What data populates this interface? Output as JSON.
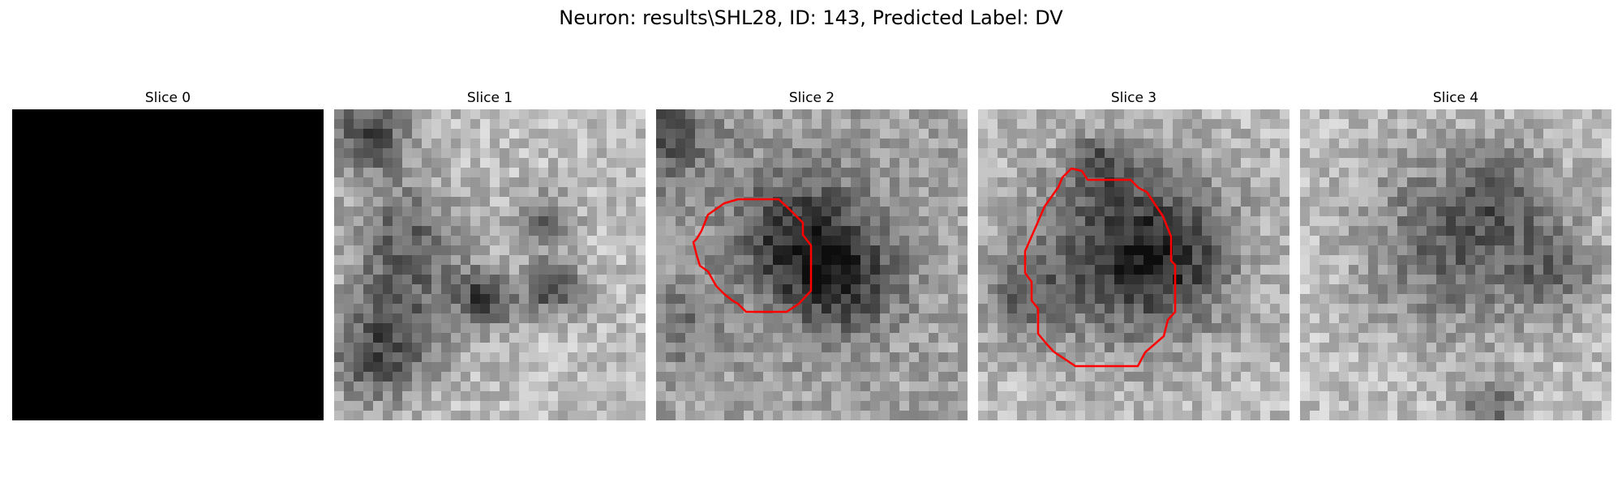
{
  "figure": {
    "title": "Neuron: results\\SHL28, ID: 143, Predicted Label: DV"
  },
  "slices": [
    {
      "title": "Slice 0",
      "kind": "blank",
      "contour": false
    },
    {
      "title": "Slice 1",
      "kind": "texture",
      "contour": false
    },
    {
      "title": "Slice 2",
      "kind": "cell",
      "contour": true
    },
    {
      "title": "Slice 3",
      "kind": "cell",
      "contour": true
    },
    {
      "title": "Slice 4",
      "kind": "cell",
      "contour": false
    }
  ],
  "colors": {
    "background": "#ffffff",
    "contour": "#ff0000",
    "blank": "#000000"
  }
}
